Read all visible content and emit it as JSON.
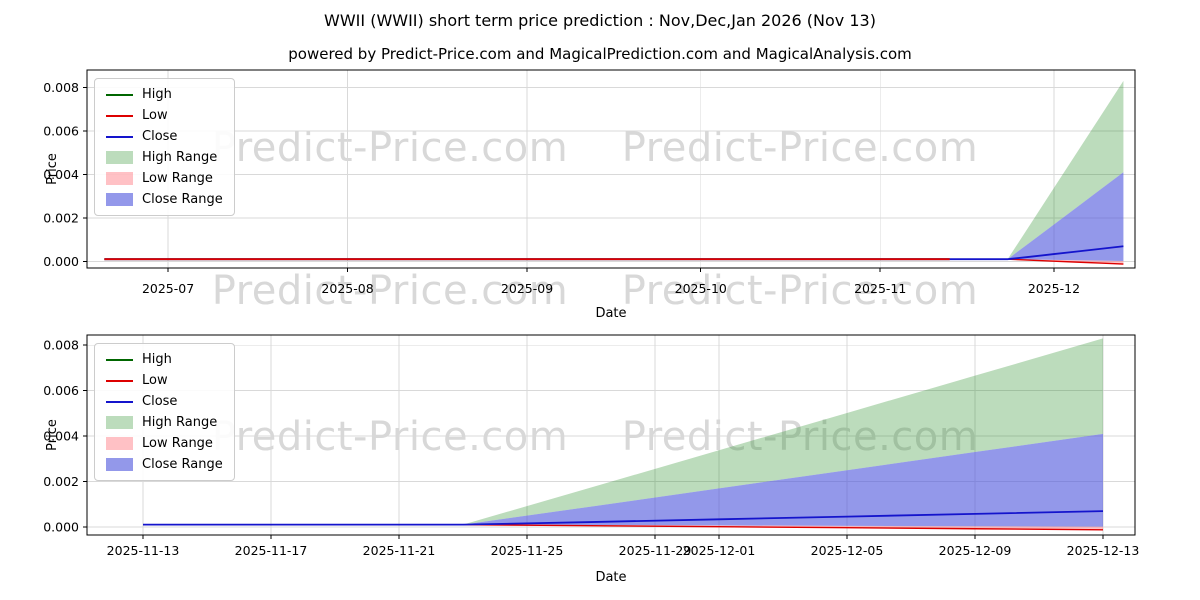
{
  "page": {
    "title": "WWII (WWII) short term price prediction : Nov,Dec,Jan 2026 (Nov 13)",
    "subtitle": "powered by Predict-Price.com and MagicalPrediction.com and MagicalAnalysis.com",
    "watermark": "Predict-Price.com"
  },
  "colors": {
    "high_line": "#006600",
    "low_line": "#dd0000",
    "close_line": "#1414cc",
    "high_range_fill": "rgba(34,139,34,0.30)",
    "low_range_fill": "rgba(255,99,110,0.40)",
    "close_range_fill": "rgba(75,83,220,0.60)",
    "grid": "#d9d9d9",
    "spine": "#000000"
  },
  "legend": [
    {
      "label": "High",
      "swatch": "line",
      "color": "#006600",
      "icon": "high-line-swatch"
    },
    {
      "label": "Low",
      "swatch": "line",
      "color": "#dd0000",
      "icon": "low-line-swatch"
    },
    {
      "label": "Close",
      "swatch": "line",
      "color": "#1414cc",
      "icon": "close-line-swatch"
    },
    {
      "label": "High Range",
      "swatch": "patch",
      "color": "rgba(34,139,34,0.30)",
      "icon": "high-range-swatch"
    },
    {
      "label": "Low Range",
      "swatch": "patch",
      "color": "rgba(255,99,110,0.40)",
      "icon": "low-range-swatch"
    },
    {
      "label": "Close Range",
      "swatch": "patch",
      "color": "rgba(75,83,220,0.60)",
      "icon": "close-range-swatch"
    }
  ],
  "chart_data": [
    {
      "type": "line",
      "title": "",
      "xlabel": "Date",
      "ylabel": "Price",
      "x_domain": [
        "2025-06-17",
        "2025-12-15"
      ],
      "ylim": [
        -0.0003,
        0.0088
      ],
      "grid": true,
      "legend_position": "upper-left",
      "x_ticks": [
        {
          "pos": "2025-07-01",
          "label": "2025-07"
        },
        {
          "pos": "2025-08-01",
          "label": "2025-08"
        },
        {
          "pos": "2025-09-01",
          "label": "2025-09"
        },
        {
          "pos": "2025-10-01",
          "label": "2025-10"
        },
        {
          "pos": "2025-11-01",
          "label": "2025-11"
        },
        {
          "pos": "2025-12-01",
          "label": "2025-12"
        }
      ],
      "y_ticks": [
        {
          "value": 0.0,
          "label": "0.000"
        },
        {
          "value": 0.002,
          "label": "0.002"
        },
        {
          "value": 0.004,
          "label": "0.004"
        },
        {
          "value": 0.006,
          "label": "0.006"
        },
        {
          "value": 0.008,
          "label": "0.008"
        }
      ],
      "series": {
        "history": {
          "x": [
            "2025-06-20",
            "2025-11-13"
          ],
          "y": [
            0.000105,
            0.000105
          ]
        },
        "forecast": {
          "x": [
            "2025-11-13",
            "2025-11-17",
            "2025-11-21",
            "2025-11-23",
            "2025-11-27",
            "2025-12-01",
            "2025-12-05",
            "2025-12-09",
            "2025-12-13"
          ],
          "high_top": [
            0.000105,
            0.000105,
            0.000105,
            0.000105,
            0.00174,
            0.00338,
            0.00502,
            0.00666,
            0.0083
          ],
          "close_top": [
            0.000105,
            0.000105,
            0.000105,
            0.000105,
            0.0009,
            0.0017,
            0.0025,
            0.0033,
            0.0041
          ],
          "close": [
            0.000105,
            0.000105,
            0.000105,
            0.000105,
            0.00022,
            0.00034,
            0.00046,
            0.00058,
            0.0007
          ],
          "low_top": [
            0.000105,
            0.000105,
            0.000105,
            0.000105,
            8.8e-05,
            7.1e-05,
            5.4e-05,
            3.7e-05,
            2e-05
          ],
          "low_bottom": [
            0.000105,
            0.000105,
            0.000105,
            0.000105,
            6e-05,
            1.5e-05,
            -3e-05,
            -7.5e-05,
            -0.00012
          ]
        }
      }
    },
    {
      "type": "line",
      "title": "",
      "xlabel": "Date",
      "ylabel": "Price",
      "x_domain": [
        "2025-11-11T06:00:00",
        "2025-12-14T00:00:00"
      ],
      "ylim": [
        -0.00035,
        0.00845
      ],
      "grid": true,
      "legend_position": "upper-left",
      "x_ticks": [
        {
          "pos": "2025-11-13",
          "label": "2025-11-13"
        },
        {
          "pos": "2025-11-17",
          "label": "2025-11-17"
        },
        {
          "pos": "2025-11-21",
          "label": "2025-11-21"
        },
        {
          "pos": "2025-11-25",
          "label": "2025-11-25"
        },
        {
          "pos": "2025-11-29",
          "label": "2025-11-29"
        },
        {
          "pos": "2025-12-01",
          "label": "2025-12-01"
        },
        {
          "pos": "2025-12-05",
          "label": "2025-12-05"
        },
        {
          "pos": "2025-12-09",
          "label": "2025-12-09"
        },
        {
          "pos": "2025-12-13",
          "label": "2025-12-13"
        }
      ],
      "y_ticks": [
        {
          "value": 0.0,
          "label": "0.000"
        },
        {
          "value": 0.002,
          "label": "0.002"
        },
        {
          "value": 0.004,
          "label": "0.004"
        },
        {
          "value": 0.006,
          "label": "0.006"
        },
        {
          "value": 0.008,
          "label": "0.008"
        }
      ],
      "series": {
        "forecast": {
          "x": [
            "2025-11-13",
            "2025-11-17",
            "2025-11-21",
            "2025-11-23",
            "2025-11-27",
            "2025-12-01",
            "2025-12-05",
            "2025-12-09",
            "2025-12-13"
          ],
          "high_top": [
            0.000105,
            0.000105,
            0.000105,
            0.000105,
            0.00174,
            0.00338,
            0.00502,
            0.00666,
            0.0083
          ],
          "close_top": [
            0.000105,
            0.000105,
            0.000105,
            0.000105,
            0.0009,
            0.0017,
            0.0025,
            0.0033,
            0.0041
          ],
          "close": [
            0.000105,
            0.000105,
            0.000105,
            0.000105,
            0.00022,
            0.00034,
            0.00046,
            0.00058,
            0.0007
          ],
          "low_top": [
            0.000105,
            0.000105,
            0.000105,
            0.000105,
            8.8e-05,
            7.1e-05,
            5.4e-05,
            3.7e-05,
            2e-05
          ],
          "low_bottom": [
            0.000105,
            0.000105,
            0.000105,
            0.000105,
            6e-05,
            1.5e-05,
            -3e-05,
            -7.5e-05,
            -0.00012
          ]
        }
      }
    }
  ]
}
